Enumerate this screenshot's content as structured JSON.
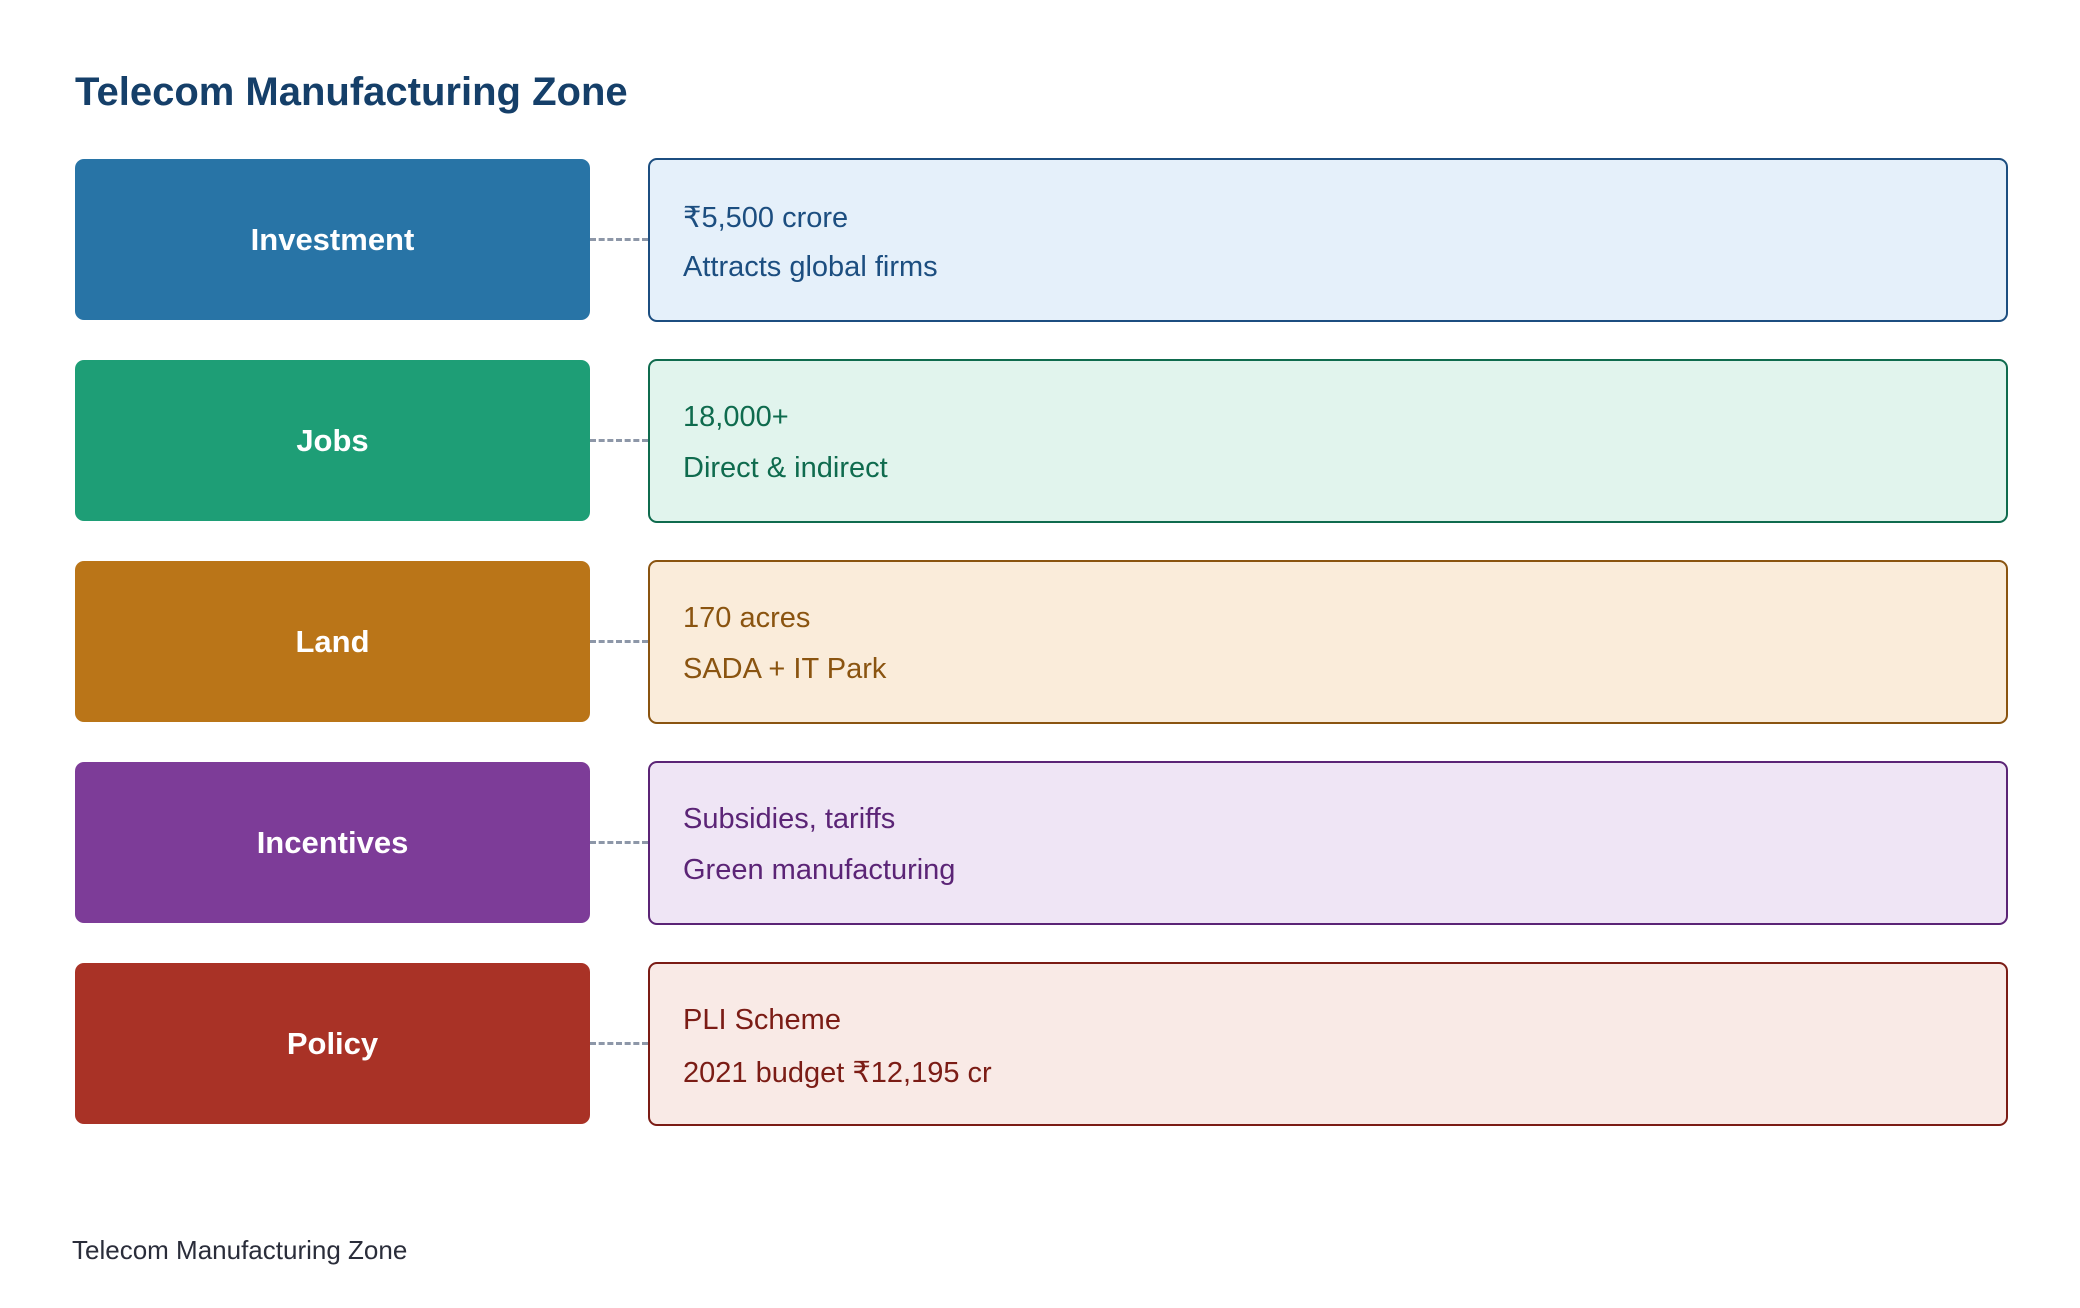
{
  "title": "Telecom Manufacturing Zone",
  "footer": "Telecom Manufacturing Zone",
  "rows": [
    {
      "label": "Investment",
      "line1": "₹5,500 crore",
      "line2": "Attracts global firms",
      "label_color": "#2874a6",
      "box_fill": "#e5f0fa",
      "box_border": "#1c4e80",
      "text_color": "#1c4e80"
    },
    {
      "label": "Jobs",
      "line1": "18,000+",
      "line2": "Direct & indirect",
      "label_color": "#1e9e76",
      "box_fill": "#e1f4ed",
      "box_border": "#0f6b4e",
      "text_color": "#0f6b4e"
    },
    {
      "label": "Land",
      "line1": "170 acres",
      "line2": "SADA + IT Park",
      "label_color": "#ba7518",
      "box_fill": "#faecda",
      "box_border": "#8a5410",
      "text_color": "#8a5410"
    },
    {
      "label": "Incentives",
      "line1": "Subsidies, tariffs",
      "line2": "Green manufacturing",
      "label_color": "#7d3c98",
      "box_fill": "#efe5f5",
      "box_border": "#5b2476",
      "text_color": "#5b2476"
    },
    {
      "label": "Policy",
      "line1": "PLI Scheme",
      "line2": "2021 budget ₹12,195 cr",
      "label_color": "#a93226",
      "box_fill": "#f9eae6",
      "box_border": "#7b1c15",
      "text_color": "#7b1c15"
    }
  ]
}
